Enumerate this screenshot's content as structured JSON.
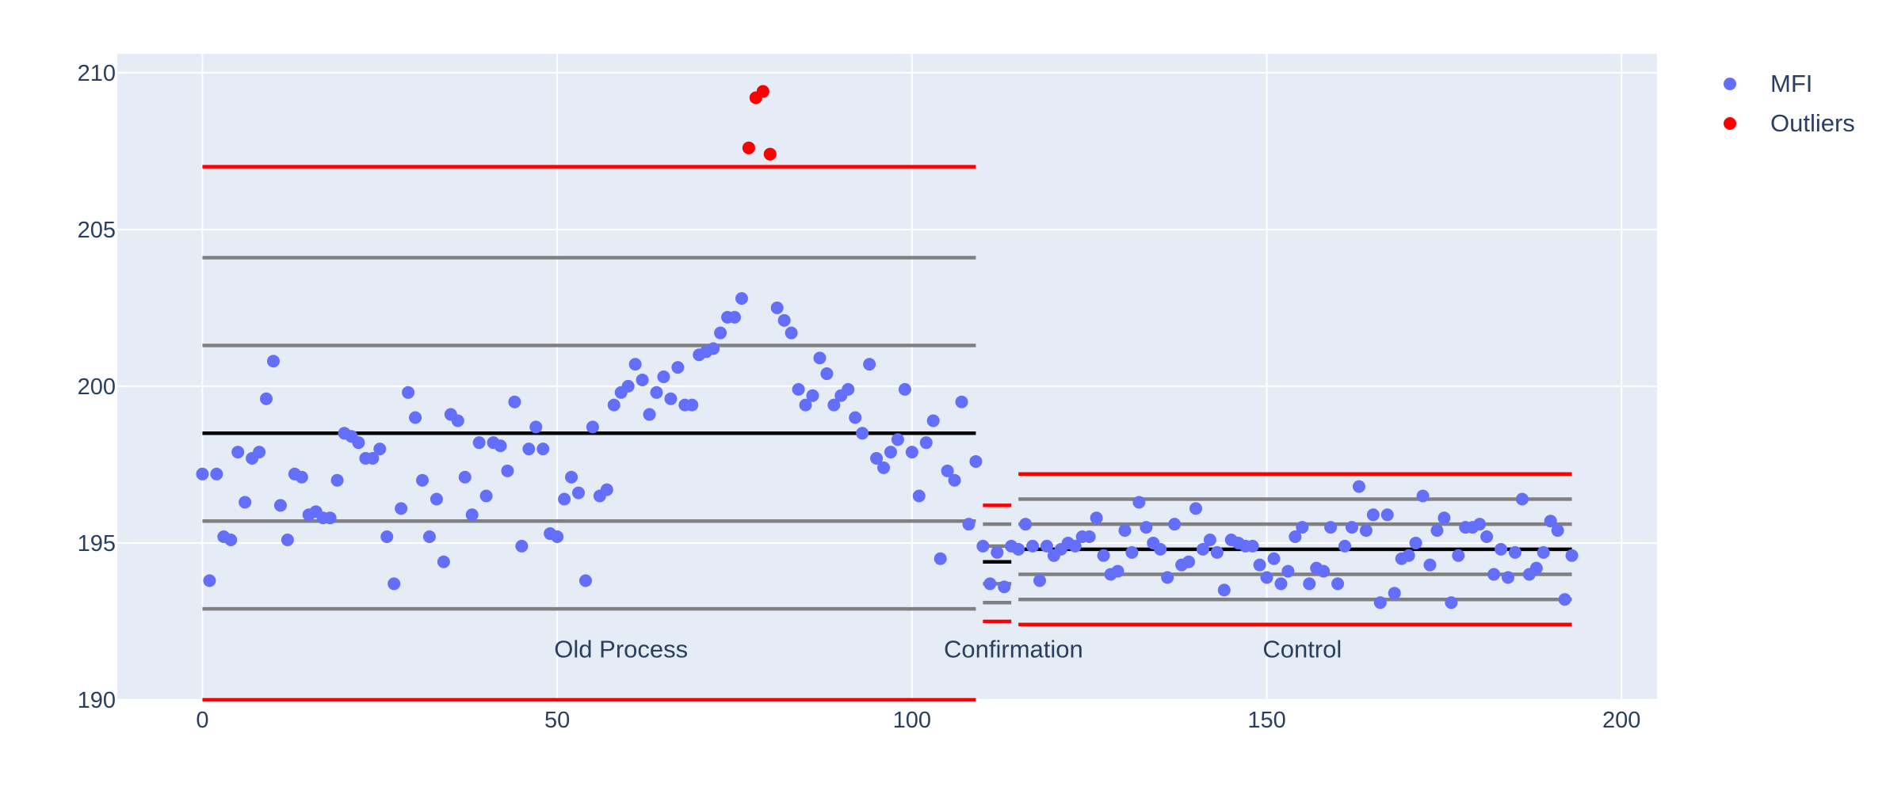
{
  "chart_data": {
    "type": "scatter",
    "title": "",
    "xlabel": "",
    "ylabel": "",
    "xlim": [
      -12,
      205
    ],
    "ylim": [
      190,
      210.6
    ],
    "xticks": [
      0,
      50,
      100,
      150,
      200
    ],
    "yticks": [
      190,
      195,
      200,
      205,
      210
    ],
    "grid": true,
    "legend_position": "top-right",
    "colors": {
      "plot_bg": "#e5ecf6",
      "grid": "#ffffff",
      "MFI": "#636efa",
      "Outliers": "#ff0000",
      "control_limit": "#ff0000",
      "sigma_line": "#808080",
      "center_line": "#000000"
    },
    "series": [
      {
        "name": "MFI",
        "x": [
          0,
          1,
          2,
          3,
          4,
          5,
          6,
          7,
          8,
          9,
          10,
          11,
          12,
          13,
          14,
          15,
          16,
          17,
          18,
          19,
          20,
          21,
          22,
          23,
          24,
          25,
          26,
          27,
          28,
          29,
          30,
          31,
          32,
          33,
          34,
          35,
          36,
          37,
          38,
          39,
          40,
          41,
          42,
          43,
          44,
          45,
          46,
          47,
          48,
          49,
          50,
          51,
          52,
          53,
          54,
          55,
          56,
          57,
          58,
          59,
          60,
          61,
          62,
          63,
          64,
          65,
          66,
          67,
          68,
          69,
          70,
          71,
          72,
          73,
          74,
          75,
          76,
          77,
          78,
          79,
          80,
          81,
          82,
          83,
          84,
          85,
          86,
          87,
          88,
          89,
          90,
          91,
          92,
          93,
          94,
          95,
          96,
          97,
          98,
          99,
          100,
          101,
          102,
          103,
          104,
          105,
          106,
          107,
          108,
          109,
          110,
          111,
          112,
          113,
          114,
          115,
          116,
          117,
          118,
          119,
          120,
          121,
          122,
          123,
          124,
          125,
          126,
          127,
          128,
          129,
          130,
          131,
          132,
          133,
          134,
          135,
          136,
          137,
          138,
          139,
          140,
          141,
          142,
          143,
          144,
          145,
          146,
          147,
          148,
          149,
          150,
          151,
          152,
          153,
          154,
          155,
          156,
          157,
          158,
          159,
          160,
          161,
          162,
          163,
          164,
          165,
          166,
          167,
          168,
          169,
          170,
          171,
          172,
          173,
          174,
          175,
          176,
          177,
          178,
          179,
          180,
          181,
          182,
          183,
          184,
          185,
          186,
          187,
          188,
          189,
          190,
          191,
          192,
          193
        ],
        "y": [
          197.2,
          193.8,
          197.2,
          195.2,
          195.1,
          197.9,
          196.3,
          197.7,
          197.9,
          199.6,
          200.8,
          196.2,
          195.1,
          197.2,
          197.1,
          195.9,
          196.0,
          195.8,
          195.8,
          197.0,
          198.5,
          198.4,
          198.2,
          197.7,
          197.7,
          198.0,
          195.2,
          193.7,
          196.1,
          199.8,
          199.0,
          197.0,
          195.2,
          196.4,
          194.4,
          199.1,
          198.9,
          197.1,
          195.9,
          198.2,
          196.5,
          198.2,
          198.1,
          197.3,
          199.5,
          194.9,
          198.0,
          198.7,
          198.0,
          195.3,
          195.2,
          196.4,
          197.1,
          196.6,
          193.8,
          198.7,
          196.5,
          196.7,
          199.4,
          199.8,
          200.0,
          200.7,
          200.2,
          199.1,
          199.8,
          200.3,
          199.6,
          200.6,
          199.4,
          199.4,
          201.0,
          201.1,
          201.2,
          201.7,
          202.2,
          202.2,
          202.8,
          207.6,
          209.2,
          209.4,
          207.4,
          202.5,
          202.1,
          201.7,
          199.9,
          199.4,
          199.7,
          200.9,
          200.4,
          199.4,
          199.7,
          199.9,
          199.0,
          198.5,
          200.7,
          197.7,
          197.4,
          197.9,
          198.3,
          199.9,
          197.9,
          196.5,
          198.2,
          198.9,
          194.5,
          197.3,
          197.0,
          199.5,
          195.6,
          197.6,
          194.9,
          193.7,
          194.7,
          193.6,
          194.9,
          194.8,
          195.6,
          194.9,
          193.8,
          194.9,
          194.6,
          194.8,
          195.0,
          194.9,
          195.2,
          195.2,
          195.8,
          194.6,
          194.0,
          194.1,
          195.4,
          194.7,
          196.3,
          195.5,
          195.0,
          194.8,
          193.9,
          195.6,
          194.3,
          194.4,
          196.1,
          194.8,
          195.1,
          194.7,
          193.5,
          195.1,
          195.0,
          194.9,
          194.9,
          194.3,
          193.9,
          194.5,
          193.7,
          194.1,
          195.2,
          195.5,
          193.7,
          194.2,
          194.1,
          195.5,
          193.7,
          194.9,
          195.5,
          196.8,
          195.4,
          195.9,
          193.1,
          195.9,
          193.4,
          194.5,
          194.6,
          195.0,
          196.5,
          194.3,
          195.4,
          195.8,
          193.1,
          194.6,
          195.5,
          195.5,
          195.6,
          195.2,
          194.0,
          194.8,
          193.9,
          194.7,
          196.4,
          194.0,
          194.2,
          194.7,
          195.7,
          195.4,
          193.2,
          194.6
        ]
      },
      {
        "name": "Outliers",
        "x": [
          77,
          78,
          79,
          80
        ],
        "y": [
          207.6,
          209.2,
          209.4,
          207.4
        ]
      }
    ],
    "phases": [
      {
        "label": "Old Process",
        "label_x": 59,
        "label_y": 191.6,
        "x_range": [
          0,
          109
        ],
        "limits": {
          "ucl": 207.0,
          "lcl": 190.0
        },
        "sigma_lines": [
          204.1,
          201.3,
          195.7,
          192.9
        ],
        "center": 198.5
      },
      {
        "label": "Confirmation",
        "label_x": 114.3,
        "label_y": 191.6,
        "x_range": [
          110,
          114
        ],
        "limits": {
          "ucl": 196.2,
          "lcl": 192.5
        },
        "sigma_lines": [
          195.6,
          194.9,
          193.7,
          193.1
        ],
        "center": 194.4
      },
      {
        "label": "Control",
        "label_x": 155,
        "label_y": 191.6,
        "x_range": [
          115,
          193
        ],
        "limits": {
          "ucl": 197.2,
          "lcl": 192.4
        },
        "sigma_lines": [
          196.4,
          195.6,
          194.0,
          193.2
        ],
        "center": 194.8
      }
    ],
    "legend": [
      "MFI",
      "Outliers"
    ]
  }
}
